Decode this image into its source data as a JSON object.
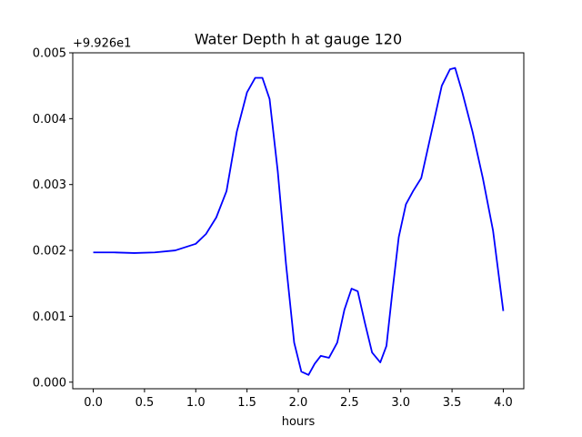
{
  "chart_data": {
    "type": "line",
    "title": "Water Depth h at gauge 120",
    "xlabel": "hours",
    "ylabel": "",
    "y_offset_label": "+9.926e1",
    "xlim": [
      -0.2,
      4.2
    ],
    "ylim": [
      -0.0001,
      0.005
    ],
    "xticks": [
      0.0,
      0.5,
      1.0,
      1.5,
      2.0,
      2.5,
      3.0,
      3.5,
      4.0
    ],
    "xtick_labels": [
      "0.0",
      "0.5",
      "1.0",
      "1.5",
      "2.0",
      "2.5",
      "3.0",
      "3.5",
      "4.0"
    ],
    "yticks": [
      0.0,
      0.001,
      0.002,
      0.003,
      0.004,
      0.005
    ],
    "ytick_labels": [
      "0.000",
      "0.001",
      "0.002",
      "0.003",
      "0.004",
      "0.005"
    ],
    "grid": false,
    "series": [
      {
        "color": "#0000ff",
        "x": [
          0.0,
          0.2,
          0.4,
          0.6,
          0.8,
          1.0,
          1.1,
          1.2,
          1.3,
          1.4,
          1.5,
          1.58,
          1.65,
          1.72,
          1.8,
          1.88,
          1.96,
          2.03,
          2.1,
          2.16,
          2.22,
          2.3,
          2.38,
          2.45,
          2.52,
          2.58,
          2.65,
          2.72,
          2.8,
          2.86,
          2.92,
          2.98,
          3.05,
          3.12,
          3.2,
          3.3,
          3.4,
          3.48,
          3.53,
          3.6,
          3.7,
          3.8,
          3.9,
          4.0
        ],
        "y": [
          0.00197,
          0.00197,
          0.00196,
          0.00197,
          0.002,
          0.0021,
          0.00225,
          0.0025,
          0.0029,
          0.0038,
          0.0044,
          0.00462,
          0.00462,
          0.0043,
          0.0032,
          0.0018,
          0.0006,
          0.00016,
          0.00011,
          0.00028,
          0.0004,
          0.00037,
          0.0006,
          0.0011,
          0.00142,
          0.00138,
          0.0009,
          0.00045,
          0.0003,
          0.00055,
          0.0014,
          0.0022,
          0.0027,
          0.0029,
          0.0031,
          0.0038,
          0.0045,
          0.00475,
          0.00477,
          0.0044,
          0.0038,
          0.0031,
          0.0023,
          0.00108
        ]
      }
    ]
  }
}
